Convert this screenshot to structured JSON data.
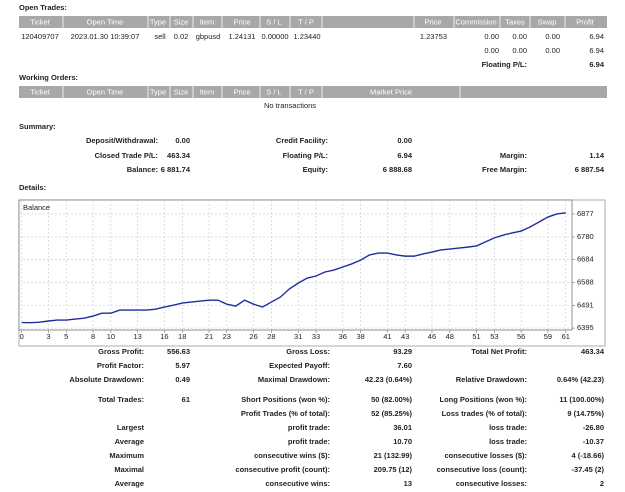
{
  "open_trades": {
    "title": "Open Trades:",
    "headers": [
      "Ticket",
      "Open Time",
      "Type",
      "Size",
      "Item",
      "Price",
      "S / L",
      "T / P",
      "Price",
      "Commission",
      "Taxes",
      "Swap",
      "Profit"
    ],
    "rows": [
      [
        "120409707",
        "2023.01.30 10:39:07",
        "sell",
        "0.02",
        "gbpusd",
        "1.24131",
        "0.00000",
        "1.23440",
        "1.23753",
        "0.00",
        "0.00",
        "0.00",
        "6.94"
      ]
    ],
    "totals": [
      "0.00",
      "0.00",
      "0.00",
      "6.94"
    ],
    "floating_label": "Floating P/L:",
    "floating_value": "6.94"
  },
  "working_orders": {
    "title": "Working Orders:",
    "headers": [
      "Ticket",
      "Open Time",
      "Type",
      "Size",
      "Item",
      "Price",
      "S / L",
      "T / P",
      "Market Price"
    ],
    "empty": "No transactions"
  },
  "summary": {
    "title": "Summary:",
    "rows": [
      {
        "left": {
          "label": "Deposit/Withdrawal:",
          "value": "0.00"
        },
        "middle": {
          "label": "Credit Facility:",
          "value": "0.00"
        }
      },
      {
        "left": {
          "label": "Closed Trade P/L:",
          "value": "463.34"
        },
        "middle": {
          "label": "Floating P/L:",
          "value": "6.94"
        },
        "right": {
          "label": "Margin:",
          "value": "1.14"
        }
      },
      {
        "left": {
          "label": "Balance:",
          "value": "6 881.74"
        },
        "middle": {
          "label": "Equity:",
          "value": "6 888.68"
        },
        "right": {
          "label": "Free Margin:",
          "value": "6 887.54"
        }
      }
    ]
  },
  "details_title": "Details:",
  "chart_data": {
    "type": "line",
    "title": "Balance",
    "color": "#1f2d9e",
    "grid": true,
    "x": [
      0,
      1,
      2,
      3,
      4,
      5,
      6,
      7,
      8,
      9,
      10,
      11,
      12,
      13,
      14,
      15,
      16,
      17,
      18,
      19,
      20,
      21,
      22,
      23,
      24,
      25,
      26,
      27,
      28,
      29,
      30,
      31,
      32,
      33,
      34,
      35,
      36,
      37,
      38,
      39,
      40,
      41,
      42,
      43,
      44,
      45,
      46,
      47,
      48,
      49,
      50,
      51,
      52,
      53,
      54,
      55,
      56,
      57,
      58,
      59,
      60,
      61
    ],
    "values": [
      6418.4,
      6418,
      6420,
      6425,
      6429,
      6429,
      6433,
      6437,
      6446,
      6458,
      6458,
      6471,
      6471,
      6471,
      6471,
      6475,
      6484,
      6492,
      6501,
      6505,
      6509,
      6513,
      6513,
      6496,
      6488,
      6513,
      6496,
      6484,
      6505,
      6526,
      6560,
      6585,
      6606,
      6615,
      6632,
      6640,
      6653,
      6666,
      6682,
      6704,
      6712,
      6712,
      6704,
      6699,
      6699,
      6708,
      6716,
      6725,
      6729,
      6733,
      6737,
      6742,
      6759,
      6776,
      6788,
      6797,
      6805,
      6822,
      6843,
      6864,
      6877,
      6881.74
    ],
    "xlim": [
      -0.3,
      61.7
    ],
    "ylim": [
      6387,
      6936
    ],
    "xticks": [
      0,
      3,
      5,
      8,
      10,
      13,
      16,
      18,
      21,
      23,
      26,
      28,
      31,
      33,
      36,
      38,
      41,
      43,
      46,
      48,
      51,
      53,
      56,
      59,
      61
    ],
    "yticks": [
      6395,
      6491,
      6588,
      6684,
      6780,
      6877
    ]
  },
  "details": {
    "rows": [
      {
        "left": {
          "label": "Gross Profit:",
          "value": "556.63"
        },
        "middle": {
          "label": "Gross Loss:",
          "value": "93.29"
        },
        "right": {
          "label": "Total Net Profit:",
          "value": "463.34"
        }
      },
      {
        "left": {
          "label": "Profit Factor:",
          "value": "5.97"
        },
        "middle": {
          "label": "Expected Payoff:",
          "value": "7.60"
        }
      },
      {
        "left": {
          "label": "Absolute Drawdown:",
          "value": "0.49"
        },
        "middle": {
          "label": "Maximal Drawdown:",
          "value": "42.23 (0.64%)"
        },
        "right": {
          "label": "Relative Drawdown:",
          "value": "0.64% (42.23)"
        }
      },
      {
        "left": {
          "label": "Total Trades:",
          "value": "61"
        },
        "middle": {
          "label": "Short Positions (won %):",
          "value": "50 (82.00%)"
        },
        "right": {
          "label": "Long Positions (won %):",
          "value": "11 (100.00%)"
        }
      },
      {
        "middle": {
          "label": "Profit Trades (% of total):",
          "value": "52 (85.25%)"
        },
        "right": {
          "label": "Loss trades (% of total):",
          "value": "9 (14.75%)"
        }
      },
      {
        "left": {
          "label": "Largest"
        },
        "middle": {
          "label": "profit trade:",
          "value": "36.01"
        },
        "right": {
          "label": "loss trade:",
          "value": "-26.80"
        }
      },
      {
        "left": {
          "label": "Average"
        },
        "middle": {
          "label": "profit trade:",
          "value": "10.70"
        },
        "right": {
          "label": "loss trade:",
          "value": "-10.37"
        }
      },
      {
        "left": {
          "label": "Maximum"
        },
        "middle": {
          "label": "consecutive wins ($):",
          "value": "21 (132.99)"
        },
        "right": {
          "label": "consecutive losses ($):",
          "value": "4 (-18.66)"
        }
      },
      {
        "left": {
          "label": "Maximal"
        },
        "middle": {
          "label": "consecutive profit (count):",
          "value": "209.75 (12)"
        },
        "right": {
          "label": "consecutive loss (count):",
          "value": "-37.45 (2)"
        }
      },
      {
        "left": {
          "label": "Average"
        },
        "middle": {
          "label": "consecutive wins:",
          "value": "13"
        },
        "right": {
          "label": "consecutive losses:",
          "value": "2"
        }
      }
    ]
  }
}
